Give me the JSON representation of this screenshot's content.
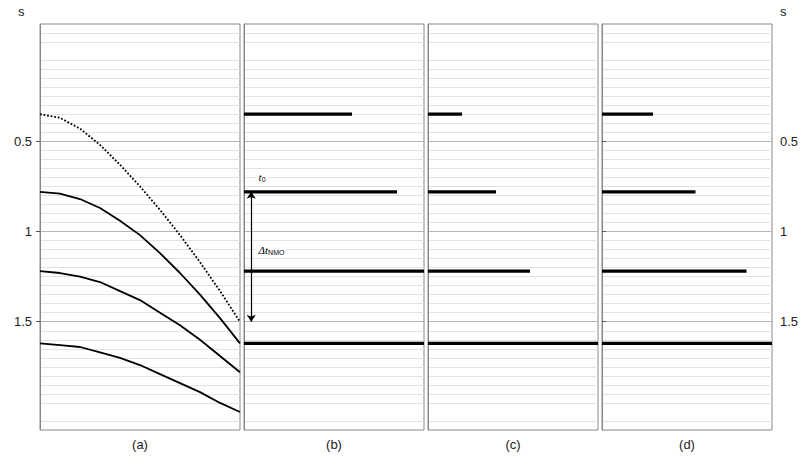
{
  "chart_data": [
    {
      "type": "line",
      "title": "(a)",
      "ylabel": "s",
      "xlim": [
        0,
        1
      ],
      "ylim": [
        -0.15,
        2.1
      ],
      "yticks": [
        0.5,
        1,
        1.5
      ],
      "grid": true,
      "tick_labels": "y",
      "series": [
        {
          "color": "#000000",
          "line_style": "dotted",
          "x": [
            0,
            0.1,
            0.2,
            0.3,
            0.4,
            0.5,
            0.6,
            0.7,
            0.8,
            0.9,
            1
          ],
          "values": [
            0.35,
            0.37,
            0.43,
            0.52,
            0.63,
            0.75,
            0.88,
            1.02,
            1.17,
            1.33,
            1.5
          ]
        },
        {
          "color": "#000000",
          "line_style": "solid",
          "x": [
            0,
            0.1,
            0.2,
            0.3,
            0.4,
            0.5,
            0.6,
            0.7,
            0.8,
            0.9,
            1
          ],
          "values": [
            0.78,
            0.79,
            0.82,
            0.87,
            0.94,
            1.02,
            1.12,
            1.23,
            1.35,
            1.48,
            1.62
          ]
        },
        {
          "color": "#000000",
          "line_style": "solid",
          "x": [
            0,
            0.1,
            0.2,
            0.3,
            0.4,
            0.5,
            0.6,
            0.7,
            0.8,
            0.9,
            1
          ],
          "values": [
            1.22,
            1.23,
            1.25,
            1.28,
            1.33,
            1.38,
            1.45,
            1.52,
            1.6,
            1.69,
            1.78
          ]
        },
        {
          "color": "#000000",
          "line_style": "solid",
          "x": [
            0,
            0.1,
            0.2,
            0.3,
            0.4,
            0.5,
            0.6,
            0.7,
            0.8,
            0.9,
            1
          ],
          "values": [
            1.62,
            1.63,
            1.64,
            1.67,
            1.7,
            1.74,
            1.79,
            1.84,
            1.89,
            1.95,
            2.0
          ]
        }
      ]
    },
    {
      "type": "line",
      "title": "(b)",
      "xlim": [
        0,
        1
      ],
      "ylim": [
        -0.15,
        2.1
      ],
      "yticks": [
        0.5,
        1,
        1.5
      ],
      "grid": true,
      "tick_labels": false,
      "series": [
        {
          "color": "#000000",
          "line_style": "solid",
          "x": [
            0,
            0.6
          ],
          "values": [
            0.35,
            0.35
          ]
        },
        {
          "color": "#000000",
          "line_style": "solid",
          "x": [
            0,
            0.85
          ],
          "values": [
            0.78,
            0.78
          ]
        },
        {
          "color": "#000000",
          "line_style": "solid",
          "x": [
            0,
            1
          ],
          "values": [
            1.22,
            1.22
          ]
        },
        {
          "color": "#000000",
          "line_style": "solid",
          "x": [
            0,
            1
          ],
          "values": [
            1.62,
            1.62
          ]
        }
      ],
      "arrow": {
        "x": 0.04,
        "from": 0.78,
        "to": 1.5
      },
      "annotations": [
        {
          "text": "t",
          "subscript": "0",
          "x": 0.07,
          "y": 0.7
        },
        {
          "text": "Δt",
          "subscript": "NMO",
          "x": 0.07,
          "y": 1.1
        }
      ]
    },
    {
      "type": "line",
      "title": "(c)",
      "xlim": [
        0,
        1
      ],
      "ylim": [
        -0.15,
        2.1
      ],
      "yticks": [
        0.5,
        1,
        1.5
      ],
      "grid": true,
      "tick_labels": false,
      "series": [
        {
          "color": "#000000",
          "line_style": "solid",
          "x": [
            0,
            0.2
          ],
          "values": [
            0.35,
            0.35
          ]
        },
        {
          "color": "#000000",
          "line_style": "solid",
          "x": [
            0,
            0.4
          ],
          "values": [
            0.78,
            0.78
          ]
        },
        {
          "color": "#000000",
          "line_style": "solid",
          "x": [
            0,
            0.6
          ],
          "values": [
            1.22,
            1.22
          ]
        },
        {
          "color": "#000000",
          "line_style": "solid",
          "x": [
            0,
            1
          ],
          "values": [
            1.62,
            1.62
          ]
        }
      ]
    },
    {
      "type": "line",
      "title": "(d)",
      "ylabel": "s",
      "xlim": [
        0,
        1
      ],
      "ylim": [
        -0.15,
        2.1
      ],
      "yticks": [
        0.5,
        1,
        1.5
      ],
      "grid": true,
      "tick_labels": "y",
      "series": [
        {
          "color": "#000000",
          "line_style": "solid",
          "x": [
            0,
            0.3
          ],
          "values": [
            0.35,
            0.35
          ]
        },
        {
          "color": "#000000",
          "line_style": "solid",
          "x": [
            0,
            0.55
          ],
          "values": [
            0.78,
            0.78
          ]
        },
        {
          "color": "#000000",
          "line_style": "solid",
          "x": [
            0,
            0.85
          ],
          "values": [
            1.22,
            1.22
          ]
        },
        {
          "color": "#000000",
          "line_style": "solid",
          "x": [
            0,
            1
          ],
          "values": [
            1.62,
            1.62
          ]
        }
      ]
    }
  ]
}
